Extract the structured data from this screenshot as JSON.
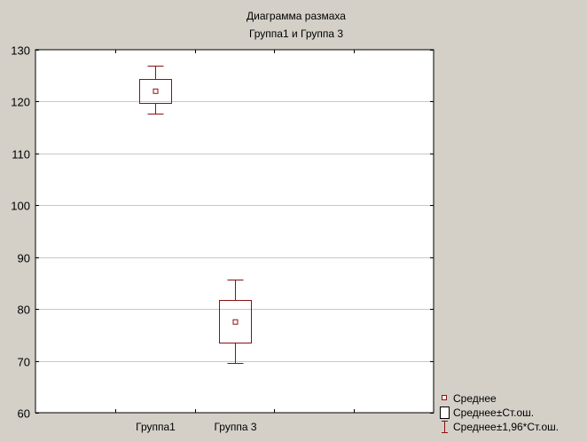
{
  "chart_data": {
    "type": "box",
    "title": "Диаграмма размаха",
    "subtitle": "Группа1   и  Группа 3",
    "categories": [
      "Группа1",
      "Группа 3"
    ],
    "series": [
      {
        "category": "Группа1",
        "mean": 122,
        "se_low": 119.8,
        "se_high": 124.4,
        "ci_low": 117.6,
        "ci_high": 127.0
      },
      {
        "category": "Группа 3",
        "mean": 77.5,
        "se_low": 73.5,
        "se_high": 81.7,
        "ci_low": 69.5,
        "ci_high": 85.6
      }
    ],
    "ylim": [
      60,
      130
    ],
    "yticks": [
      60,
      70,
      80,
      90,
      100,
      110,
      120,
      130
    ],
    "grid": true,
    "legend": {
      "placement": "bottom-right",
      "items": [
        {
          "symbol": "small-square",
          "label": "Среднее"
        },
        {
          "symbol": "box",
          "label": "Среднее±Ст.ош."
        },
        {
          "symbol": "whisker",
          "label": "Среднее±1,96*Ст.ош."
        }
      ]
    },
    "colors": {
      "marks": "#8b1010",
      "background": "#d4d0c8",
      "plot": "#ffffff",
      "grid": "#c8c8c8"
    }
  }
}
